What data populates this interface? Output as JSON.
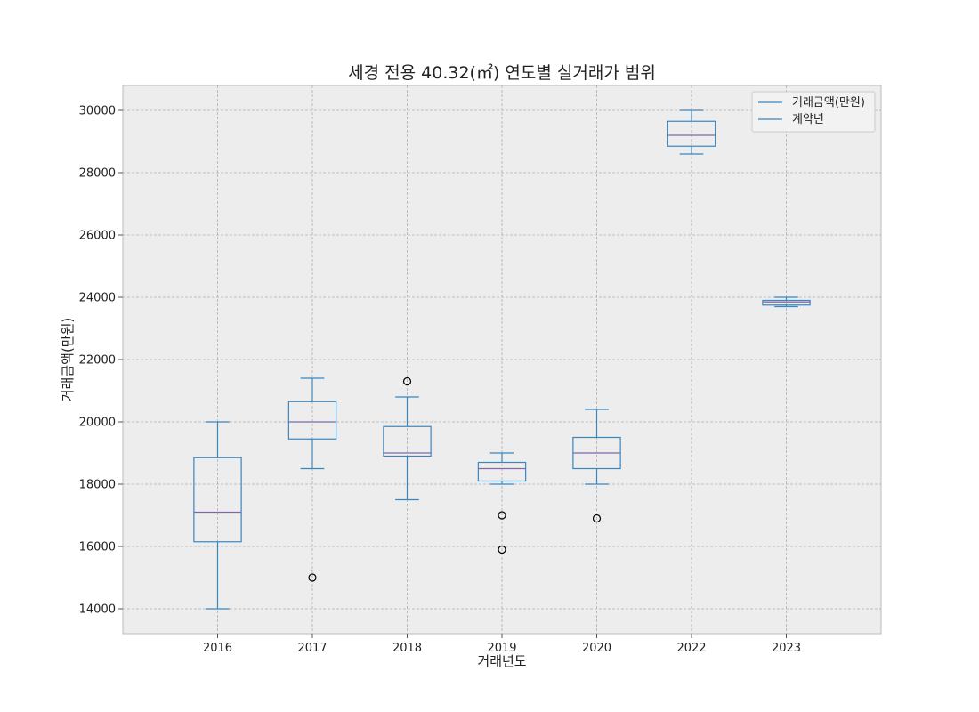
{
  "chart_data": {
    "type": "box",
    "title": "세경 전용 40.32(㎡) 연도별 실거래가 범위",
    "xlabel": "거래년도",
    "ylabel": "거래금액(만원)",
    "categories": [
      "2016",
      "2017",
      "2018",
      "2019",
      "2020",
      "2022",
      "2023"
    ],
    "ylim": [
      13200,
      30800
    ],
    "yticks": [
      14000,
      16000,
      18000,
      20000,
      22000,
      24000,
      26000,
      28000,
      30000
    ],
    "grid": true,
    "legend_position": "top-right",
    "legend": [
      "거래금액(만원)",
      "계약년"
    ],
    "boxes": [
      {
        "category": "2016",
        "whisker_low": 14000,
        "q1": 16150,
        "median": 17100,
        "q3": 18850,
        "whisker_high": 20000,
        "outliers": []
      },
      {
        "category": "2017",
        "whisker_low": 18500,
        "q1": 19450,
        "median": 20000,
        "q3": 20650,
        "whisker_high": 21400,
        "outliers": [
          15000
        ]
      },
      {
        "category": "2018",
        "whisker_low": 17500,
        "q1": 18900,
        "median": 19000,
        "q3": 19850,
        "whisker_high": 20800,
        "outliers": [
          21300
        ]
      },
      {
        "category": "2019",
        "whisker_low": 18000,
        "q1": 18100,
        "median": 18500,
        "q3": 18700,
        "whisker_high": 19000,
        "outliers": [
          17000,
          15900
        ]
      },
      {
        "category": "2020",
        "whisker_low": 18000,
        "q1": 18500,
        "median": 19000,
        "q3": 19500,
        "whisker_high": 20400,
        "outliers": [
          16900
        ]
      },
      {
        "category": "2022",
        "whisker_low": 28600,
        "q1": 28850,
        "median": 29200,
        "q3": 29650,
        "whisker_high": 30000,
        "outliers": []
      },
      {
        "category": "2023",
        "whisker_low": 23700,
        "q1": 23750,
        "median": 23850,
        "q3": 23900,
        "whisker_high": 24000,
        "outliers": []
      }
    ],
    "colors": {
      "box": "#3a87c0",
      "median": "#8068a8",
      "outlier": "#000000",
      "plot_background": "#ededed",
      "grid": "#b0b0b0",
      "legend_line": "#3a87c0"
    }
  }
}
